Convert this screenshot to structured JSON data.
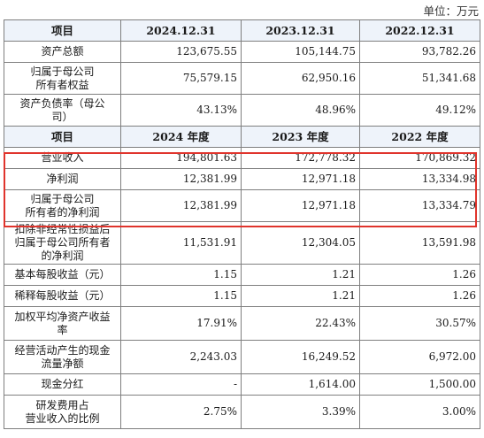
{
  "unit_label": "单位：万元",
  "header1": [
    "项目",
    "2024.12.31",
    "2023.12.31",
    "2022.12.31"
  ],
  "balance_rows": [
    {
      "label": "资产总额",
      "values": [
        "123,675.55",
        "105,144.75",
        "93,782.26"
      ]
    },
    {
      "label": "归属于母公司\n所有者权益",
      "values": [
        "75,579.15",
        "62,950.16",
        "51,341.68"
      ]
    },
    {
      "label": "资产负债率（母公\n司）",
      "values": [
        "43.13%",
        "48.96%",
        "49.12%"
      ]
    }
  ],
  "header2": [
    "项目",
    "2024 年度",
    "2023 年度",
    "2022 年度"
  ],
  "income_rows": [
    {
      "label": "营业收入",
      "values": [
        "194,801.63",
        "172,778.32",
        "170,869.32"
      ]
    },
    {
      "label": "净利润",
      "values": [
        "12,381.99",
        "12,971.18",
        "13,334.98"
      ]
    },
    {
      "label": "归属于母公司\n所有者的净利润",
      "values": [
        "12,381.99",
        "12,971.18",
        "13,334.79"
      ]
    },
    {
      "label": "扣除非经常性损益后\n归属于母公司所有者\n的净利润",
      "values": [
        "11,531.91",
        "12,304.05",
        "13,591.98"
      ]
    },
    {
      "label": "基本每股收益（元）",
      "values": [
        "1.15",
        "1.21",
        "1.26"
      ]
    },
    {
      "label": "稀释每股收益（元）",
      "values": [
        "1.15",
        "1.21",
        "1.26"
      ]
    },
    {
      "label": "加权平均净资产收益\n率",
      "values": [
        "17.91%",
        "22.43%",
        "30.57%"
      ]
    },
    {
      "label": "经营活动产生的现金\n流量净额",
      "values": [
        "2,243.03",
        "16,249.52",
        "6,972.00"
      ]
    },
    {
      "label": "现金分红",
      "values": [
        "-",
        "1,614.00",
        "1,500.00"
      ]
    },
    {
      "label": "研发费用占\n营业收入的比例",
      "values": [
        "2.75%",
        "3.39%",
        "3.00%"
      ]
    }
  ],
  "highlight_color": "#e0342c"
}
